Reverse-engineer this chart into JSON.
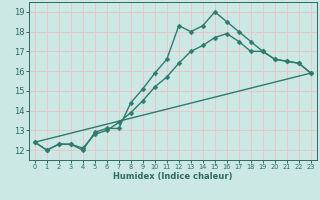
{
  "xlabel": "Humidex (Indice chaleur)",
  "bg_color": "#cce8e4",
  "grid_color": "#e8c8c8",
  "line_color": "#2e7b6e",
  "markersize": 2.5,
  "linewidth": 1.0,
  "xlim": [
    -0.5,
    23.5
  ],
  "ylim": [
    11.5,
    19.5
  ],
  "xticks": [
    0,
    1,
    2,
    3,
    4,
    5,
    6,
    7,
    8,
    9,
    10,
    11,
    12,
    13,
    14,
    15,
    16,
    17,
    18,
    19,
    20,
    21,
    22,
    23
  ],
  "yticks": [
    12,
    13,
    14,
    15,
    16,
    17,
    18,
    19
  ],
  "series1_x": [
    0,
    1,
    2,
    3,
    4,
    5,
    6,
    7,
    8,
    9,
    10,
    11,
    12,
    13,
    14,
    15,
    16,
    17,
    18,
    19,
    20,
    21,
    22,
    23
  ],
  "series1_y": [
    12.4,
    12.0,
    12.3,
    12.3,
    12.0,
    12.9,
    13.1,
    13.1,
    14.4,
    15.1,
    15.9,
    16.6,
    18.3,
    18.0,
    18.3,
    19.0,
    18.5,
    18.0,
    17.5,
    17.0,
    16.6,
    16.5,
    16.4,
    15.9
  ],
  "series2_x": [
    0,
    1,
    2,
    3,
    4,
    5,
    6,
    7,
    8,
    9,
    10,
    11,
    12,
    13,
    14,
    15,
    16,
    17,
    18,
    19,
    20,
    21,
    22,
    23
  ],
  "series2_y": [
    12.4,
    12.0,
    12.3,
    12.3,
    12.1,
    12.8,
    13.0,
    13.4,
    13.9,
    14.5,
    15.2,
    15.7,
    16.4,
    17.0,
    17.3,
    17.7,
    17.9,
    17.5,
    17.0,
    17.0,
    16.6,
    16.5,
    16.4,
    15.9
  ],
  "series3_x": [
    0,
    23
  ],
  "series3_y": [
    12.4,
    15.9
  ],
  "tick_color": "#2e6b5e",
  "xlabel_fontsize": 6.0,
  "ytick_fontsize": 6.0,
  "xtick_fontsize": 4.8
}
